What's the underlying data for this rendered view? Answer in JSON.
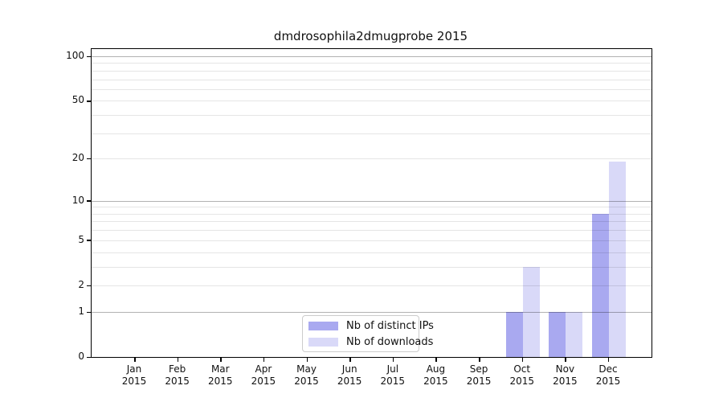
{
  "chart_data": {
    "type": "bar",
    "title": "dmdrosophila2dmugprobe 2015",
    "categories": [
      "Jan",
      "Feb",
      "Mar",
      "Apr",
      "May",
      "Jun",
      "Jul",
      "Aug",
      "Sep",
      "Oct",
      "Nov",
      "Dec"
    ],
    "year_label": "2015",
    "series": [
      {
        "name": "Nb of distinct IPs",
        "color": "#a9a9f0",
        "values": [
          0,
          0,
          0,
          0,
          0,
          0,
          0,
          0,
          0,
          1,
          1,
          8
        ]
      },
      {
        "name": "Nb of downloads",
        "color": "#d9d9f8",
        "values": [
          0,
          0,
          0,
          0,
          0,
          0,
          0,
          0,
          0,
          3,
          1,
          19
        ]
      }
    ],
    "yscale": "log10(1+x)",
    "yticks": [
      0,
      1,
      2,
      5,
      10,
      20,
      50,
      100
    ],
    "grid": {
      "major": [
        1,
        10,
        100
      ],
      "minor": [
        2,
        3,
        4,
        5,
        6,
        7,
        8,
        9,
        20,
        30,
        40,
        50,
        60,
        70,
        80,
        90
      ]
    },
    "ylim": [
      0,
      112
    ],
    "xlabel": "",
    "ylabel": "",
    "legend_position": "bottom-center",
    "colors": {
      "grid_major": "#b3b3b3",
      "grid_minor": "#e6e6e6",
      "axis": "#000000",
      "background": "#ffffff"
    }
  }
}
